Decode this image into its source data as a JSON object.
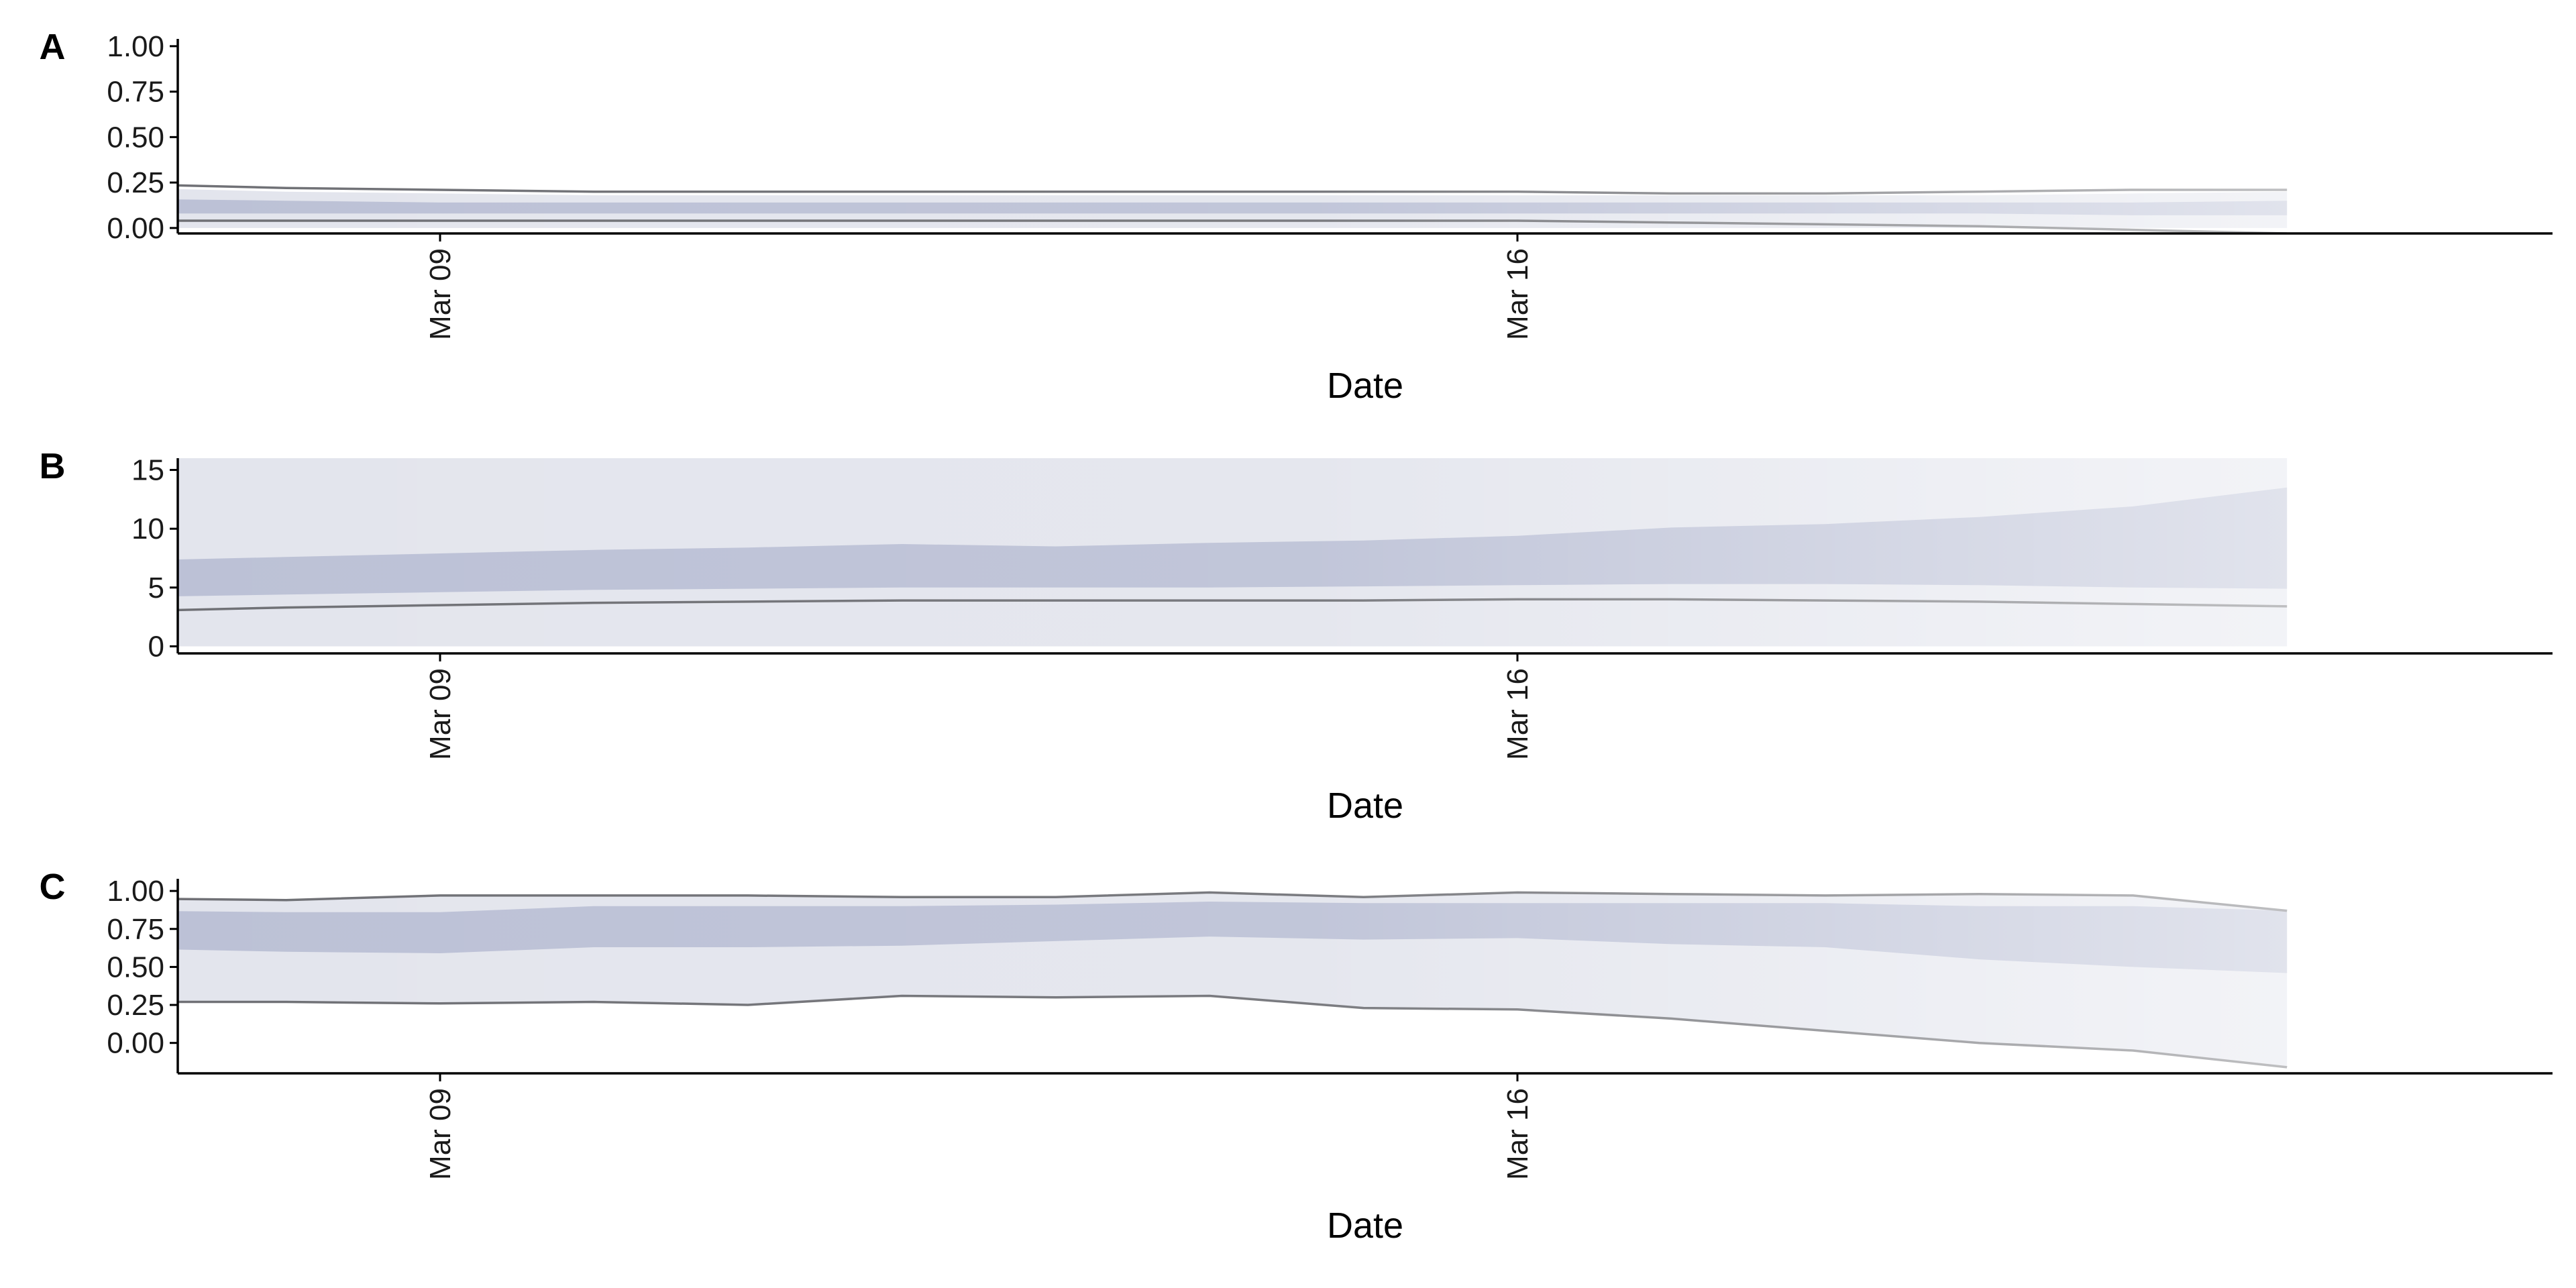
{
  "chart_data": [
    {
      "type": "area",
      "panel_label": "A",
      "xlabel": "Date",
      "x_tick_labels": [
        "Mar 09",
        "Mar 16"
      ],
      "x_tick_dates": [
        "2020-03-09",
        "2020-03-16"
      ],
      "x": [
        "2020-03-07",
        "2020-03-08",
        "2020-03-09",
        "2020-03-10",
        "2020-03-11",
        "2020-03-12",
        "2020-03-13",
        "2020-03-14",
        "2020-03-15",
        "2020-03-16",
        "2020-03-17",
        "2020-03-18",
        "2020-03-19",
        "2020-03-20",
        "2020-03-21"
      ],
      "ylim": [
        -0.03,
        1.04
      ],
      "y_ticks": [
        0.0,
        0.25,
        0.5,
        0.75,
        1.0
      ],
      "y_tick_labels": [
        "0.00",
        "0.25",
        "0.50",
        "0.75",
        "1.00"
      ],
      "outer_band": {
        "lower": [
          0.0,
          0.0,
          0.0,
          0.0,
          0.0,
          0.0,
          0.0,
          0.0,
          0.0,
          0.0,
          0.0,
          0.0,
          0.0,
          0.0,
          0.0
        ],
        "upper": [
          0.22,
          0.2,
          0.19,
          0.18,
          0.18,
          0.18,
          0.18,
          0.18,
          0.18,
          0.18,
          0.18,
          0.18,
          0.18,
          0.19,
          0.2
        ]
      },
      "inner_band": {
        "lower": [
          0.08,
          0.08,
          0.08,
          0.08,
          0.08,
          0.08,
          0.08,
          0.08,
          0.08,
          0.08,
          0.08,
          0.08,
          0.08,
          0.07,
          0.07
        ],
        "upper": [
          0.16,
          0.15,
          0.14,
          0.14,
          0.14,
          0.14,
          0.14,
          0.14,
          0.14,
          0.14,
          0.14,
          0.14,
          0.14,
          0.14,
          0.15
        ]
      },
      "upper_line": [
        0.24,
        0.22,
        0.21,
        0.2,
        0.2,
        0.2,
        0.2,
        0.2,
        0.2,
        0.2,
        0.19,
        0.19,
        0.2,
        0.21,
        0.21
      ],
      "lower_line": [
        0.04,
        0.04,
        0.04,
        0.04,
        0.04,
        0.04,
        0.04,
        0.04,
        0.04,
        0.04,
        0.03,
        0.02,
        0.01,
        -0.01,
        -0.03
      ]
    },
    {
      "type": "area",
      "panel_label": "B",
      "xlabel": "Date",
      "x_tick_labels": [
        "Mar 09",
        "Mar 16"
      ],
      "x_tick_dates": [
        "2020-03-09",
        "2020-03-16"
      ],
      "x": [
        "2020-03-07",
        "2020-03-08",
        "2020-03-09",
        "2020-03-10",
        "2020-03-11",
        "2020-03-12",
        "2020-03-13",
        "2020-03-14",
        "2020-03-15",
        "2020-03-16",
        "2020-03-17",
        "2020-03-18",
        "2020-03-19",
        "2020-03-20",
        "2020-03-21"
      ],
      "ylim": [
        -0.6,
        16
      ],
      "y_ticks": [
        0,
        5,
        10,
        15
      ],
      "y_tick_labels": [
        "0",
        "5",
        "10",
        "15"
      ],
      "outer_band": {
        "lower": [
          0,
          0,
          0,
          0,
          0,
          0,
          0,
          0,
          0,
          0,
          0,
          0,
          0,
          0,
          0
        ],
        "upper": [
          16,
          16,
          16,
          16,
          16,
          16,
          16,
          16,
          16,
          16,
          16,
          16,
          16,
          16,
          16
        ]
      },
      "inner_band": {
        "lower": [
          4.2,
          4.4,
          4.6,
          4.8,
          4.9,
          5.0,
          5.0,
          5.0,
          5.1,
          5.2,
          5.3,
          5.3,
          5.2,
          5.0,
          4.9
        ],
        "upper": [
          7.3,
          7.6,
          7.9,
          8.2,
          8.4,
          8.7,
          8.5,
          8.8,
          9.0,
          9.4,
          10.1,
          10.4,
          11.0,
          11.9,
          13.5
        ]
      },
      "upper_line": [],
      "lower_line": [
        3.0,
        3.3,
        3.5,
        3.7,
        3.8,
        3.9,
        3.9,
        3.9,
        3.9,
        4.0,
        4.0,
        3.9,
        3.8,
        3.6,
        3.4
      ]
    },
    {
      "type": "area",
      "panel_label": "C",
      "xlabel": "Date",
      "x_tick_labels": [
        "Mar 09",
        "Mar 16"
      ],
      "x_tick_dates": [
        "2020-03-09",
        "2020-03-16"
      ],
      "x": [
        "2020-03-07",
        "2020-03-08",
        "2020-03-09",
        "2020-03-10",
        "2020-03-11",
        "2020-03-12",
        "2020-03-13",
        "2020-03-14",
        "2020-03-15",
        "2020-03-16",
        "2020-03-17",
        "2020-03-18",
        "2020-03-19",
        "2020-03-20",
        "2020-03-21"
      ],
      "ylim": [
        -0.2,
        1.08
      ],
      "y_ticks": [
        0.0,
        0.25,
        0.5,
        0.75,
        1.0
      ],
      "y_tick_labels": [
        "0.00",
        "0.25",
        "0.50",
        "0.75",
        "1.00"
      ],
      "outer_band": {
        "lower": [
          0.27,
          0.27,
          0.26,
          0.27,
          0.25,
          0.31,
          0.3,
          0.31,
          0.23,
          0.22,
          0.16,
          0.08,
          0.0,
          -0.05,
          -0.16
        ],
        "upper": [
          0.95,
          0.94,
          0.97,
          0.97,
          0.97,
          0.96,
          0.96,
          0.99,
          0.96,
          0.99,
          0.98,
          0.97,
          0.98,
          0.97,
          0.87
        ]
      },
      "inner_band": {
        "lower": [
          0.62,
          0.6,
          0.59,
          0.63,
          0.63,
          0.64,
          0.67,
          0.7,
          0.68,
          0.69,
          0.65,
          0.63,
          0.55,
          0.5,
          0.46
        ],
        "upper": [
          0.87,
          0.86,
          0.86,
          0.9,
          0.9,
          0.9,
          0.91,
          0.93,
          0.92,
          0.92,
          0.92,
          0.92,
          0.9,
          0.9,
          0.87
        ]
      },
      "upper_line": [
        0.95,
        0.94,
        0.97,
        0.97,
        0.97,
        0.96,
        0.96,
        0.99,
        0.96,
        0.99,
        0.98,
        0.97,
        0.98,
        0.97,
        0.87
      ],
      "lower_line": [
        0.27,
        0.27,
        0.26,
        0.27,
        0.25,
        0.31,
        0.3,
        0.31,
        0.23,
        0.22,
        0.16,
        0.08,
        0.0,
        -0.05,
        -0.16
      ]
    }
  ],
  "colors": {
    "outer_band": "#e3e5ed",
    "inner_band": "#bcc1d6",
    "line": "#6f7075",
    "axis": "#000000"
  }
}
